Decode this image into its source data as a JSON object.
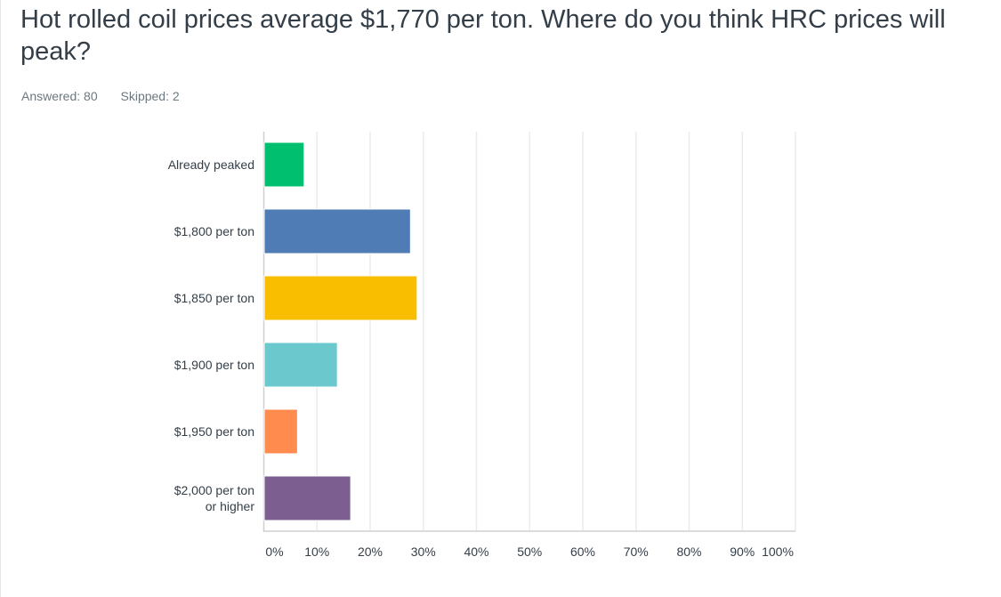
{
  "question": {
    "title": "Hot rolled coil prices average $1,770 per ton. Where do you think HRC prices will peak?",
    "answered": "Answered: 80",
    "skipped": "Skipped: 2"
  },
  "chart_data": {
    "type": "bar",
    "orientation": "horizontal",
    "title": "Hot rolled coil prices average $1,770 per ton. Where do you think HRC prices will peak?",
    "categories": [
      [
        "Already peaked"
      ],
      [
        "$1,800 per ton"
      ],
      [
        "$1,850 per ton"
      ],
      [
        "$1,900 per ton"
      ],
      [
        "$1,950 per ton"
      ],
      [
        "$2,000 per ton",
        "or higher"
      ]
    ],
    "values": [
      7.5,
      27.5,
      28.75,
      13.75,
      6.25,
      16.25
    ],
    "colors": [
      "#00bf6f",
      "#507cb6",
      "#f9be00",
      "#6bc8cd",
      "#ff8b4f",
      "#7d5e90"
    ],
    "xlim": [
      0,
      100
    ],
    "xticks": [
      "0%",
      "10%",
      "20%",
      "30%",
      "40%",
      "50%",
      "60%",
      "70%",
      "80%",
      "90%",
      "100%"
    ],
    "grid": true,
    "xlabel": "",
    "ylabel": ""
  }
}
